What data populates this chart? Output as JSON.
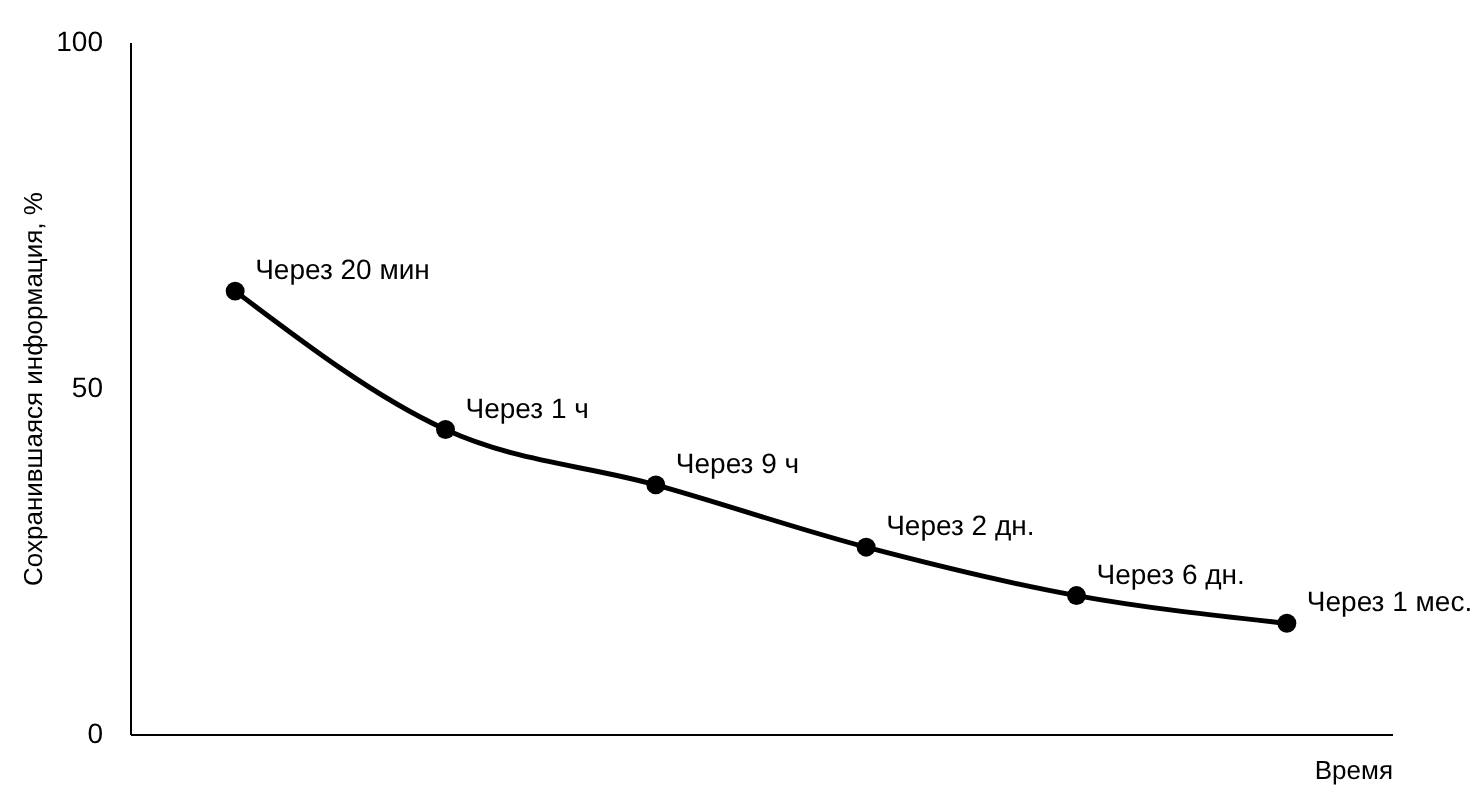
{
  "chart_data": {
    "type": "line",
    "xlabel": "Время",
    "ylabel": "Сохранившаяся информация, %",
    "categories": [
      null,
      null,
      null,
      null,
      null,
      null
    ],
    "series": [
      {
        "color": "#000000",
        "values": [
          64,
          44,
          36,
          27,
          20,
          16
        ]
      }
    ],
    "ylim": [
      0,
      100
    ],
    "yticks": [
      0,
      50,
      100
    ],
    "grid": false,
    "legend": false,
    "marker": "circle",
    "line_style": "solid",
    "tick_labels": "y",
    "annotations": [
      "Через 20 мин",
      "Через 1 ч",
      "Через 9 ч",
      "Через 2 дн.",
      "Через 6 дн.",
      "Через 1 мес."
    ]
  }
}
